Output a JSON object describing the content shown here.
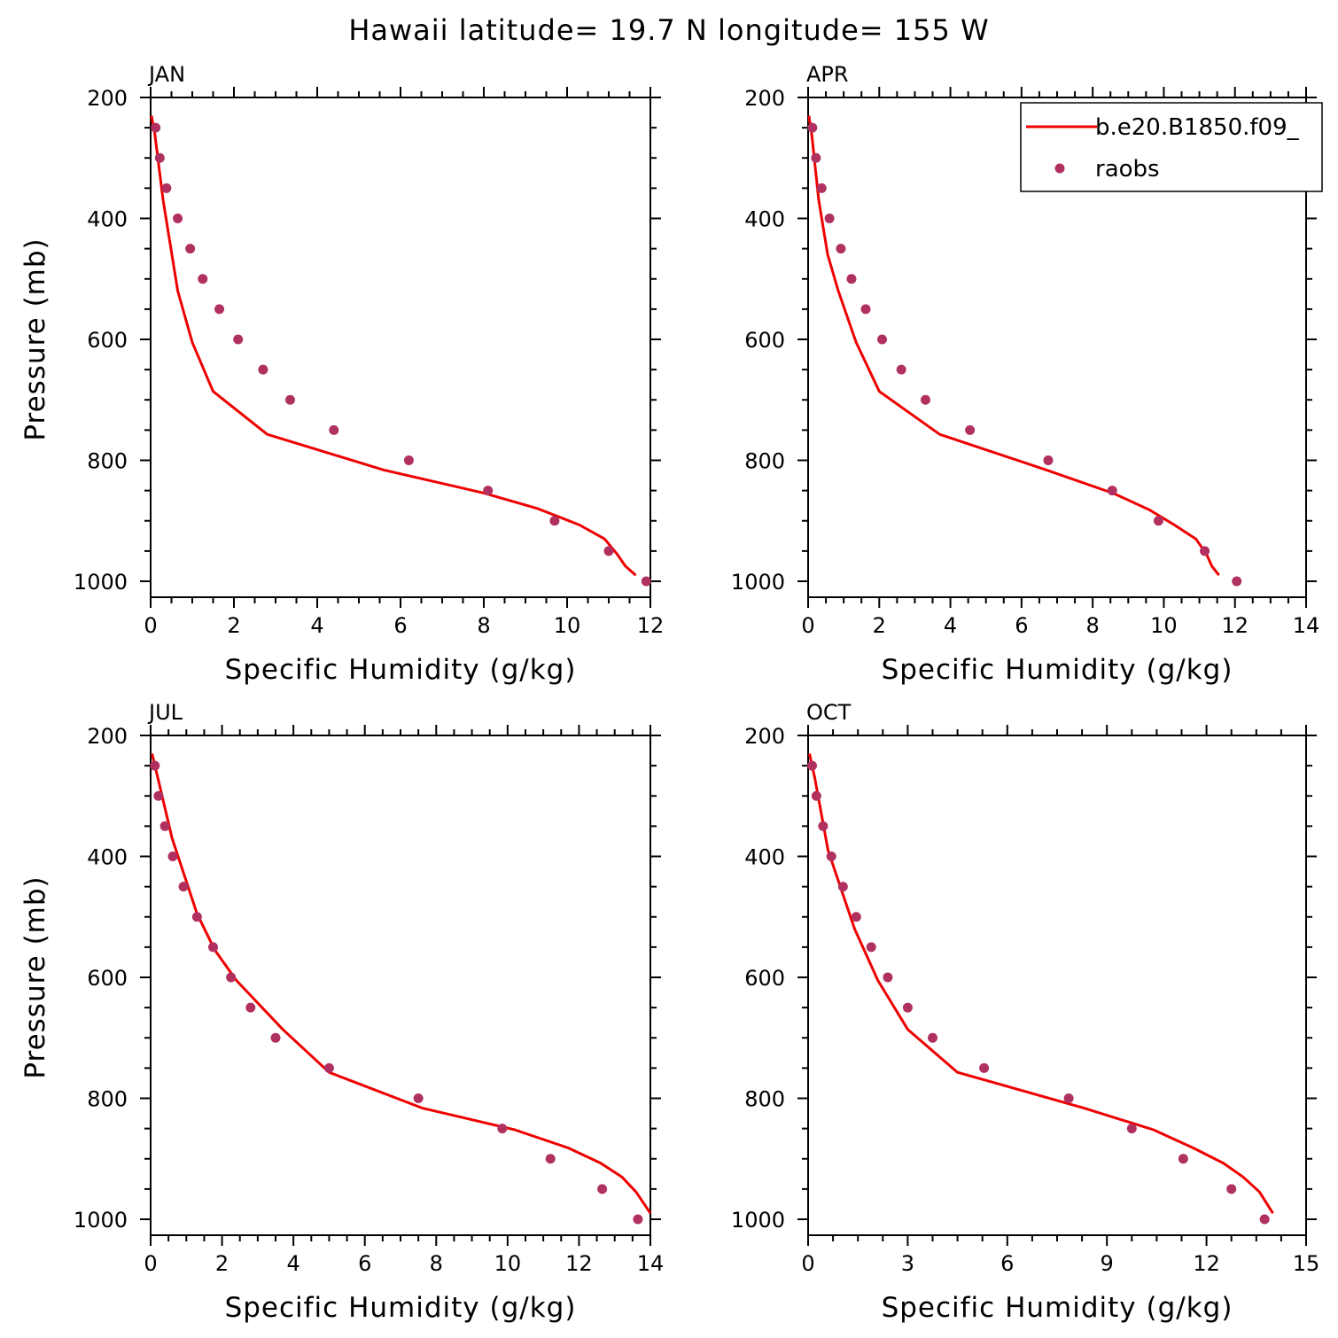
{
  "figure": {
    "title": "Hawaii  latitude= 19.7 N longitude= 155 W",
    "legend": {
      "model_label": "b.e20.B1850.f09_",
      "obs_label": "raobs",
      "placement": "top-right of APR panel"
    },
    "colors": {
      "model": "#ee0000",
      "obs": "#b03060",
      "axes": "#000000"
    }
  },
  "chart_data": [
    {
      "type": "line",
      "panel": "JAN",
      "title": "JAN",
      "xlabel": "Specific Humidity (g/kg)",
      "ylabel": "Pressure (mb)",
      "xlim": [
        0,
        12
      ],
      "ylim": [
        200,
        1000
      ],
      "y_inverted": true,
      "xticks": [
        0,
        2,
        4,
        6,
        8,
        10,
        12
      ],
      "xtick_labels": [
        "0",
        "2",
        "4",
        "6",
        "8",
        "10",
        "12"
      ],
      "yticks": [
        200,
        400,
        600,
        800,
        1000
      ],
      "ytick_labels": [
        "200",
        "400",
        "600",
        "800",
        "1000"
      ],
      "series": [
        {
          "name": "b.e20.B1850.f09_",
          "kind": "line",
          "x": [
            0.02,
            0.1,
            0.3,
            0.65,
            1.0,
            1.5,
            2.8,
            5.6,
            8.0,
            9.3,
            10.3,
            10.9,
            11.2,
            11.4,
            11.65
          ],
          "y": [
            230,
            260,
            370,
            520,
            605,
            686,
            757,
            816,
            854,
            880,
            907,
            930,
            955,
            975,
            990
          ]
        },
        {
          "name": "raobs",
          "kind": "scatter",
          "x": [
            0.12,
            0.22,
            0.38,
            0.65,
            0.95,
            1.25,
            1.65,
            2.1,
            2.7,
            3.35,
            4.4,
            6.2,
            8.1,
            9.7,
            11.0,
            11.9
          ],
          "y": [
            250,
            300,
            350,
            400,
            450,
            500,
            550,
            600,
            650,
            700,
            750,
            800,
            850,
            900,
            950,
            1000
          ]
        }
      ]
    },
    {
      "type": "line",
      "panel": "APR",
      "title": "APR",
      "xlabel": "Specific Humidity (g/kg)",
      "ylabel": "",
      "xlim": [
        0,
        14
      ],
      "ylim": [
        200,
        1000
      ],
      "y_inverted": true,
      "xticks": [
        0,
        2,
        4,
        6,
        8,
        10,
        12,
        14
      ],
      "xtick_labels": [
        "0",
        "2",
        "4",
        "6",
        "8",
        "10",
        "12",
        "14"
      ],
      "yticks": [
        200,
        400,
        600,
        800,
        1000
      ],
      "ytick_labels": [
        "200",
        "400",
        "600",
        "800",
        "1000"
      ],
      "series": [
        {
          "name": "b.e20.B1850.f09_",
          "kind": "line",
          "x": [
            0.02,
            0.1,
            0.3,
            0.55,
            0.85,
            1.35,
            2.0,
            3.7,
            6.7,
            8.6,
            9.6,
            10.3,
            10.9,
            11.2,
            11.35,
            11.55
          ],
          "y": [
            230,
            260,
            370,
            460,
            520,
            605,
            686,
            757,
            816,
            855,
            882,
            907,
            930,
            955,
            975,
            990
          ]
        },
        {
          "name": "raobs",
          "kind": "scatter",
          "x": [
            0.12,
            0.22,
            0.38,
            0.6,
            0.92,
            1.22,
            1.62,
            2.08,
            2.62,
            3.3,
            4.55,
            6.75,
            8.55,
            9.85,
            11.15,
            12.05
          ],
          "y": [
            250,
            300,
            350,
            400,
            450,
            500,
            550,
            600,
            650,
            700,
            750,
            800,
            850,
            900,
            950,
            1000
          ]
        }
      ]
    },
    {
      "type": "line",
      "panel": "JUL",
      "title": "JUL",
      "xlabel": "Specific Humidity (g/kg)",
      "ylabel": "Pressure (mb)",
      "xlim": [
        0,
        14
      ],
      "ylim": [
        200,
        1000
      ],
      "y_inverted": true,
      "xticks": [
        0,
        2,
        4,
        6,
        8,
        10,
        12,
        14
      ],
      "xtick_labels": [
        "0",
        "2",
        "4",
        "6",
        "8",
        "10",
        "12",
        "14"
      ],
      "yticks": [
        200,
        400,
        600,
        800,
        1000
      ],
      "ytick_labels": [
        "200",
        "400",
        "600",
        "800",
        "1000"
      ],
      "series": [
        {
          "name": "b.e20.B1850.f09_",
          "kind": "line",
          "x": [
            0.04,
            0.2,
            0.6,
            1.3,
            1.8,
            2.4,
            3.7,
            5.0,
            7.6,
            10.2,
            11.7,
            12.6,
            13.2,
            13.6,
            14.0
          ],
          "y": [
            230,
            270,
            370,
            495,
            555,
            605,
            686,
            757,
            816,
            852,
            882,
            907,
            930,
            955,
            990
          ]
        },
        {
          "name": "raobs",
          "kind": "scatter",
          "x": [
            0.12,
            0.22,
            0.4,
            0.62,
            0.92,
            1.3,
            1.75,
            2.25,
            2.8,
            3.5,
            5.0,
            7.5,
            9.85,
            11.2,
            12.65,
            13.65
          ],
          "y": [
            250,
            300,
            350,
            400,
            450,
            500,
            550,
            600,
            650,
            700,
            750,
            800,
            850,
            900,
            950,
            1000
          ]
        }
      ]
    },
    {
      "type": "line",
      "panel": "OCT",
      "title": "OCT",
      "xlabel": "Specific Humidity (g/kg)",
      "ylabel": "",
      "xlim": [
        0,
        15
      ],
      "ylim": [
        200,
        1000
      ],
      "y_inverted": true,
      "xticks": [
        0,
        3,
        6,
        9,
        12,
        15
      ],
      "xtick_labels": [
        "0",
        "3",
        "6",
        "9",
        "12",
        "15"
      ],
      "yticks": [
        200,
        400,
        600,
        800,
        1000
      ],
      "ytick_labels": [
        "200",
        "400",
        "600",
        "800",
        "1000"
      ],
      "series": [
        {
          "name": "b.e20.B1850.f09_",
          "kind": "line",
          "x": [
            0.04,
            0.2,
            0.6,
            1.4,
            2.1,
            3.0,
            4.5,
            8.3,
            10.4,
            11.6,
            12.5,
            13.1,
            13.6,
            14.0
          ],
          "y": [
            230,
            270,
            390,
            520,
            605,
            686,
            757,
            816,
            852,
            882,
            907,
            930,
            955,
            990
          ]
        },
        {
          "name": "raobs",
          "kind": "scatter",
          "x": [
            0.12,
            0.25,
            0.45,
            0.7,
            1.05,
            1.45,
            1.9,
            2.4,
            3.0,
            3.75,
            5.3,
            7.85,
            9.75,
            11.3,
            12.75,
            13.75
          ],
          "y": [
            250,
            300,
            350,
            400,
            450,
            500,
            550,
            600,
            650,
            700,
            750,
            800,
            850,
            900,
            950,
            1000
          ]
        }
      ]
    }
  ]
}
